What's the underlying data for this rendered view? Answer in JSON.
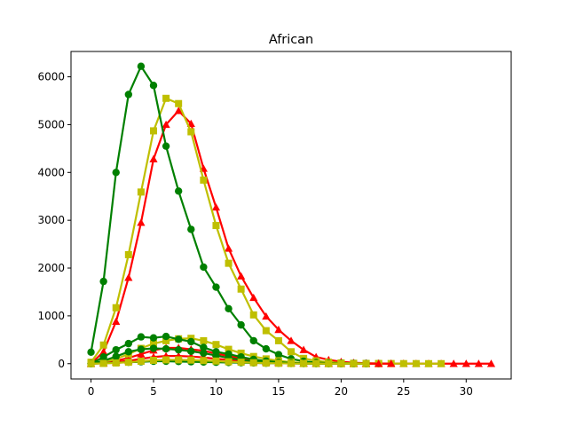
{
  "chart_data": {
    "type": "line",
    "title": "African",
    "xlabel": "",
    "ylabel": "",
    "xlim": [
      -1.6,
      33.6
    ],
    "ylim": [
      -320,
      6530
    ],
    "x_ticks": [
      0,
      5,
      10,
      15,
      20,
      25,
      30
    ],
    "y_ticks": [
      0,
      1000,
      2000,
      3000,
      4000,
      5000,
      6000
    ],
    "grid": false,
    "legend": "none",
    "series": [
      {
        "color": "#ff0000",
        "marker": "triangle",
        "x": [
          0,
          1,
          2,
          3,
          4,
          5,
          6,
          7,
          8,
          9,
          10,
          11,
          12,
          13,
          14,
          15,
          16,
          17,
          18,
          19,
          20,
          21,
          22,
          23,
          24,
          25,
          26,
          27,
          28,
          29,
          30,
          31,
          32
        ],
        "values": [
          0,
          250,
          880,
          1800,
          2950,
          4280,
          5000,
          5290,
          5020,
          4080,
          3270,
          2410,
          1830,
          1380,
          990,
          710,
          480,
          290,
          140,
          80,
          40,
          20,
          10,
          5,
          3,
          2,
          1,
          1,
          0,
          0,
          0,
          0,
          0
        ]
      },
      {
        "color": "#bfbf00",
        "marker": "square",
        "x": [
          0,
          1,
          2,
          3,
          4,
          5,
          6,
          7,
          8,
          9,
          10,
          11,
          12,
          13,
          14,
          15,
          16,
          17,
          18,
          19,
          20,
          21,
          22,
          23,
          24,
          25,
          26,
          27,
          28
        ],
        "values": [
          30,
          390,
          1170,
          2280,
          3590,
          4870,
          5550,
          5440,
          4850,
          3840,
          2890,
          2100,
          1560,
          1020,
          690,
          480,
          250,
          110,
          60,
          30,
          15,
          8,
          5,
          3,
          2,
          1,
          1,
          0,
          0
        ]
      },
      {
        "color": "#008000",
        "marker": "circle",
        "x": [
          0,
          1,
          2,
          3,
          4,
          5,
          6,
          7,
          8,
          9,
          10,
          11,
          12,
          13,
          14,
          15,
          16,
          17,
          18,
          19,
          20,
          21,
          22,
          23
        ],
        "values": [
          240,
          1720,
          4000,
          5630,
          6220,
          5820,
          4550,
          3610,
          2810,
          2020,
          1600,
          1150,
          810,
          480,
          310,
          190,
          100,
          50,
          25,
          10,
          5,
          2,
          1,
          0
        ]
      },
      {
        "color": "#ff0000",
        "marker": "triangle",
        "x": [
          0,
          1,
          2,
          3,
          4,
          5,
          6,
          7,
          8,
          9,
          10,
          11,
          12,
          13,
          14,
          15,
          16,
          17,
          18,
          19,
          20,
          21,
          22,
          23,
          24
        ],
        "values": [
          0,
          20,
          60,
          120,
          200,
          280,
          330,
          330,
          300,
          270,
          210,
          160,
          110,
          80,
          50,
          30,
          20,
          10,
          5,
          3,
          2,
          1,
          0,
          0,
          0
        ]
      },
      {
        "color": "#bfbf00",
        "marker": "square",
        "x": [
          0,
          1,
          2,
          3,
          4,
          5,
          6,
          7,
          8,
          9,
          10,
          11,
          12,
          13,
          14,
          15,
          16,
          17,
          18,
          19,
          20,
          21,
          22,
          23
        ],
        "values": [
          0,
          30,
          100,
          200,
          320,
          420,
          480,
          520,
          530,
          480,
          400,
          300,
          220,
          150,
          100,
          60,
          30,
          15,
          8,
          4,
          2,
          1,
          0,
          0
        ]
      },
      {
        "color": "#008000",
        "marker": "circle",
        "x": [
          0,
          1,
          2,
          3,
          4,
          5,
          6,
          7,
          8,
          9,
          10,
          11,
          12,
          13,
          14,
          15,
          16,
          17,
          18,
          19,
          20,
          21,
          22
        ],
        "values": [
          0,
          140,
          290,
          420,
          560,
          540,
          570,
          510,
          460,
          340,
          250,
          200,
          140,
          90,
          55,
          30,
          15,
          8,
          4,
          2,
          1,
          0,
          0
        ]
      },
      {
        "color": "#ff0000",
        "marker": "triangle",
        "x": [
          0,
          1,
          2,
          3,
          4,
          5,
          6,
          7,
          8,
          9,
          10,
          11,
          12,
          13,
          14,
          15,
          16,
          17,
          18,
          19,
          20,
          21,
          22,
          23
        ],
        "values": [
          0,
          10,
          30,
          60,
          100,
          140,
          160,
          160,
          150,
          130,
          100,
          80,
          60,
          40,
          25,
          15,
          8,
          4,
          2,
          1,
          0,
          0,
          0,
          0
        ]
      },
      {
        "color": "#008000",
        "marker": "circle",
        "x": [
          0,
          1,
          2,
          3,
          4,
          5,
          6,
          7,
          8,
          9,
          10,
          11,
          12,
          13,
          14,
          15,
          16,
          17,
          18,
          19,
          20,
          21,
          22
        ],
        "values": [
          0,
          60,
          150,
          250,
          300,
          320,
          310,
          290,
          260,
          220,
          170,
          120,
          80,
          50,
          30,
          20,
          10,
          5,
          2,
          1,
          0,
          0,
          0
        ]
      },
      {
        "color": "#008000",
        "marker": "circle",
        "x": [
          0,
          1,
          2,
          3,
          4,
          5,
          6,
          7,
          8,
          9,
          10,
          11,
          12,
          13,
          14,
          15,
          16,
          17,
          18,
          19,
          20,
          21,
          22
        ],
        "values": [
          0,
          10,
          20,
          30,
          40,
          50,
          50,
          45,
          40,
          35,
          30,
          25,
          20,
          15,
          10,
          8,
          5,
          3,
          2,
          1,
          0,
          0,
          0
        ]
      },
      {
        "color": "#bfbf00",
        "marker": "square",
        "x": [
          0,
          1,
          2,
          3,
          4,
          5,
          6,
          7,
          8,
          9,
          10,
          11,
          12,
          13,
          14,
          15,
          16,
          17,
          18,
          19,
          20,
          21,
          22
        ],
        "values": [
          0,
          5,
          15,
          30,
          50,
          70,
          80,
          80,
          75,
          65,
          55,
          40,
          30,
          20,
          12,
          8,
          4,
          2,
          1,
          0,
          0,
          0,
          0
        ]
      }
    ]
  }
}
